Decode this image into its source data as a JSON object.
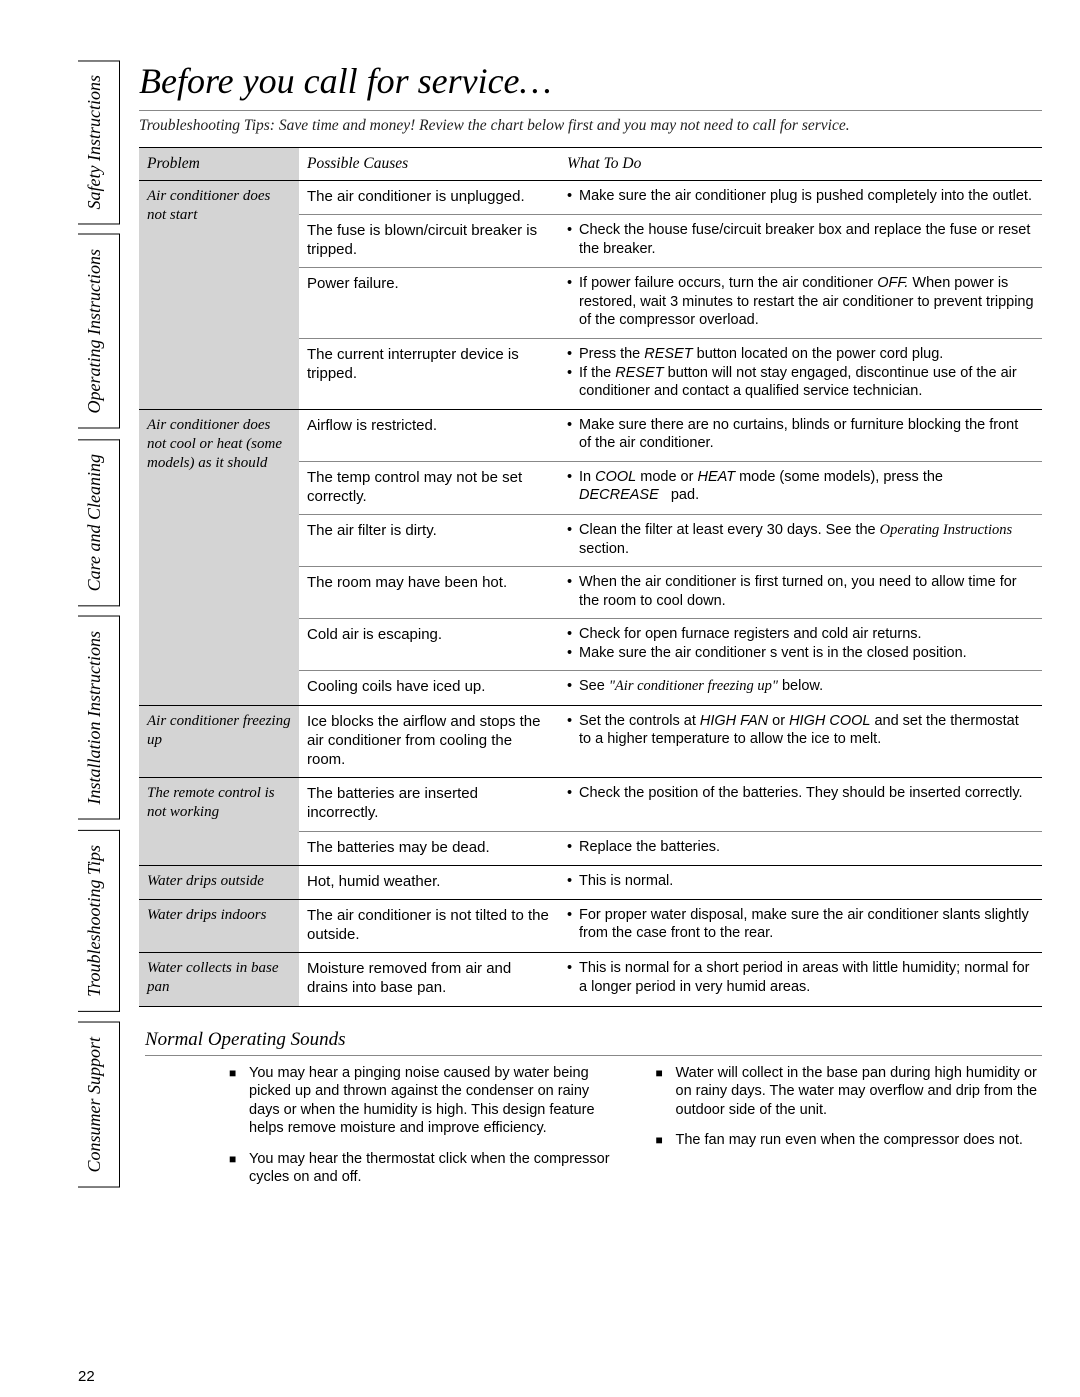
{
  "tabs": [
    "Safety Instructions",
    "Operating Instructions",
    "Care and Cleaning",
    "Installation Instructions",
    "Troubleshooting Tips",
    "Consumer Support"
  ],
  "title": "Before you call for service…",
  "subtitle": "Troubleshooting Tips: Save time and money! Review the chart below first and you may not need to call for service.",
  "table": {
    "headers": {
      "problem": "Problem",
      "causes": "Possible Causes",
      "todo": "What To Do"
    },
    "groups": [
      {
        "problem": "Air conditioner does not start",
        "rows": [
          {
            "cause": "The air conditioner is unplugged.",
            "todo": [
              "Make sure the air conditioner plug is pushed completely into the outlet."
            ]
          },
          {
            "cause": "The fuse is blown/circuit breaker is tripped.",
            "todo": [
              "Check the house fuse/circuit breaker box and replace the fuse or reset the breaker."
            ]
          },
          {
            "cause": "Power failure.",
            "todo": [
              "If power failure occurs, turn the air conditioner <em class='allcaps'>OFF.</em> When power is restored, wait 3 minutes to restart the air conditioner to prevent tripping of the compressor overload."
            ]
          },
          {
            "cause": "The current interrupter device is tripped.",
            "todo": [
              "Press the <em class='allcaps'>RESET</em> button located on the power cord plug.",
              "If the <em class='allcaps'>RESET</em> button will not stay engaged, discontinue use of the air conditioner and contact a qualified service technician."
            ]
          }
        ]
      },
      {
        "problem": "Air conditioner does not cool or heat (some models) as it should",
        "rows": [
          {
            "cause": "Airflow is restricted.",
            "todo": [
              "Make sure there are no curtains, blinds or furniture blocking the front of the air conditioner."
            ]
          },
          {
            "cause": "The temp control may not be set correctly.",
            "todo": [
              "In <em class='allcaps'>COOL</em> mode or <em class='allcaps'>HEAT</em> mode (some models), press the <em class='allcaps'>DECREASE&nbsp;&nbsp;</em> pad."
            ]
          },
          {
            "cause": "The air filter is dirty.",
            "todo": [
              "Clean the filter at least every 30 days. See the <em class='sm'>Operating Instructions</em> section."
            ]
          },
          {
            "cause": "The room may have been hot.",
            "todo": [
              "When the air conditioner is first turned on, you need to allow time for the room to cool down."
            ]
          },
          {
            "cause": "Cold air is escaping.",
            "todo": [
              "Check for open furnace registers and cold air returns.",
              "Make sure the air conditioner s vent is in the closed position."
            ]
          },
          {
            "cause": "Cooling coils have iced up.",
            "todo": [
              "See <em class='sm'>\"Air conditioner freezing up\"</em> below."
            ]
          }
        ]
      },
      {
        "problem": "Air conditioner freezing up",
        "rows": [
          {
            "cause": "Ice blocks the airflow and stops the air conditioner from cooling the room.",
            "todo": [
              "Set the controls at <em class='allcaps'>HIGH FAN</em> or <em class='allcaps'>HIGH COOL</em> and set the thermostat to a higher temperature to allow the ice to melt."
            ]
          }
        ]
      },
      {
        "problem": "The remote control is not working",
        "rows": [
          {
            "cause": "The batteries are inserted incorrectly.",
            "todo": [
              "Check the position of the batteries. They should be inserted correctly."
            ]
          },
          {
            "cause": "The batteries may be dead.",
            "todo": [
              "Replace the batteries."
            ]
          }
        ]
      },
      {
        "problem": "Water drips outside",
        "rows": [
          {
            "cause": "Hot, humid weather.",
            "todo": [
              "This is normal."
            ]
          }
        ]
      },
      {
        "problem": "Water drips indoors",
        "rows": [
          {
            "cause": "The air conditioner is not tilted to the outside.",
            "todo": [
              "For proper water disposal, make sure the air conditioner slants slightly from the case front to the rear."
            ]
          }
        ]
      },
      {
        "problem": "Water collects in base pan",
        "rows": [
          {
            "cause": "Moisture removed from air and drains into base pan.",
            "todo": [
              "This is normal for a short period in areas with little humidity; normal for a longer period in very humid areas."
            ]
          }
        ]
      }
    ]
  },
  "sounds": {
    "heading": "Normal Operating Sounds",
    "left": [
      "You may hear a pinging noise caused by water being picked up and thrown against the condenser on rainy days or when the humidity is high. This design feature helps remove moisture and improve efficiency.",
      "You may hear the thermostat click when the compressor cycles on and off."
    ],
    "right": [
      "Water will collect in the base pan during high humidity or on rainy days. The water may overflow and drip from the outdoor side of the unit.",
      "The fan may run even when the compressor does not."
    ]
  },
  "page_number": "22"
}
